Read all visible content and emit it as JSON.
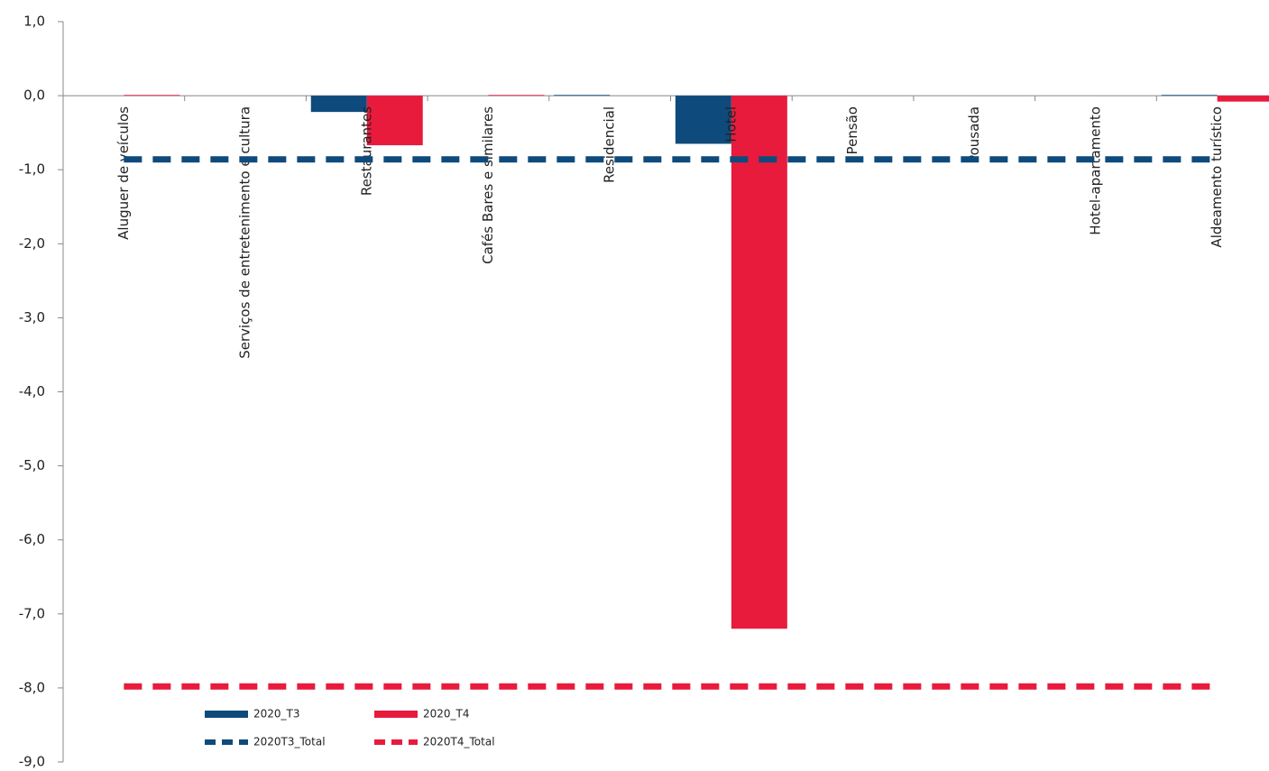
{
  "chart_data": {
    "type": "bar",
    "categories": [
      "Aluguer de veículos",
      "Serviços de entretenimento e cultura",
      "Restaurantes",
      "Cafés Bares e similares",
      "Residencial",
      "Hotel",
      "Pensão",
      "Pousada",
      "Hotel-apartamento",
      "Aldeamento turístico"
    ],
    "series": [
      {
        "name": "2020_T3",
        "type": "bar",
        "color": "#0f4a7c",
        "values": [
          0,
          0,
          -0.22,
          0,
          0.01,
          -0.65,
          0,
          0,
          0,
          0.01
        ]
      },
      {
        "name": "2020_T4",
        "type": "bar",
        "color": "#e81b3d",
        "values": [
          0.01,
          0,
          -0.67,
          0.01,
          0,
          -7.2,
          0,
          0,
          0,
          -0.08
        ]
      },
      {
        "name": "2020T3_Total",
        "type": "line",
        "color": "#0f4a7c",
        "values": [
          -0.86,
          -0.86,
          -0.86,
          -0.86,
          -0.86,
          -0.86,
          -0.86,
          -0.86,
          -0.86,
          -0.86
        ]
      },
      {
        "name": "2020T4_Total",
        "type": "line",
        "color": "#e81b3d",
        "values": [
          -7.98,
          -7.98,
          -7.98,
          -7.98,
          -7.98,
          -7.98,
          -7.98,
          -7.98,
          -7.98,
          -7.98
        ]
      }
    ],
    "ylim": [
      -9,
      1
    ],
    "yticks": [
      {
        "value": 1,
        "label": "1,0"
      },
      {
        "value": 0,
        "label": "0,0"
      },
      {
        "value": -1,
        "label": "-1,0"
      },
      {
        "value": -2,
        "label": "-2,0"
      },
      {
        "value": -3,
        "label": "-3,0"
      },
      {
        "value": -4,
        "label": "-4,0"
      },
      {
        "value": -5,
        "label": "-5,0"
      },
      {
        "value": -6,
        "label": "-6,0"
      },
      {
        "value": -7,
        "label": "-7,0"
      },
      {
        "value": -8,
        "label": "-8,0"
      },
      {
        "value": -9,
        "label": "-9,0"
      }
    ],
    "legend": "bottom-left",
    "grid": false
  }
}
